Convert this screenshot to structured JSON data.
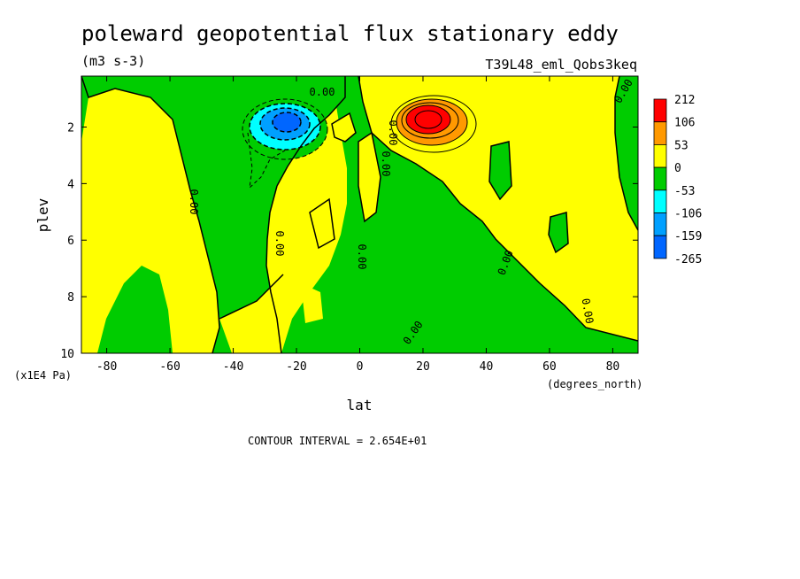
{
  "chart_data": {
    "type": "heatmap",
    "title": "poleward geopotential flux stationary eddy",
    "units": "(m3 s-3)",
    "experiment": "T39L48_eml_Qobs3keq",
    "xlabel": "lat",
    "xunits": "(degrees_north)",
    "ylabel": "plev",
    "yunits": "(x1E4 Pa)",
    "xlim": [
      -88,
      88
    ],
    "ylim": [
      10,
      0.2
    ],
    "xticks": [
      -80,
      -60,
      -40,
      -20,
      0,
      20,
      40,
      60,
      80
    ],
    "yticks": [
      2,
      4,
      6,
      8,
      10
    ],
    "colorbar": {
      "levels": [
        "212",
        "106",
        "53",
        "0",
        "-53",
        "-106",
        "-159",
        "-265"
      ],
      "colors": [
        "#ff0000",
        "#ff9900",
        "#ffff00",
        "#00cc00",
        "#00ffff",
        "#00a0ff",
        "#0066ff"
      ]
    },
    "contour_interval_text": "CONTOUR INTERVAL = 2.654E+01",
    "zero_label": "0.00",
    "features": [
      {
        "name": "positive maximum",
        "lat": 22,
        "plev": 1.8,
        "value": 212
      },
      {
        "name": "negative minimum",
        "lat": -23,
        "plev": 1.8,
        "value": -265
      }
    ]
  }
}
